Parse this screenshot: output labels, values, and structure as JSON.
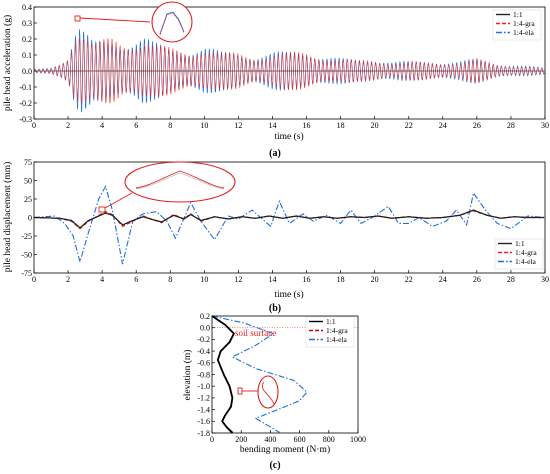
{
  "chart_data": [
    {
      "panel": "(a)",
      "type": "line",
      "xlabel": "time (s)",
      "ylabel": "pile head acceleration (g)",
      "xlim": [
        0,
        30
      ],
      "ylim": [
        -0.3,
        0.4
      ],
      "xticks": [
        0,
        2,
        4,
        6,
        8,
        10,
        12,
        14,
        16,
        18,
        20,
        22,
        24,
        26,
        28,
        30
      ],
      "yticks": [
        -0.3,
        -0.2,
        -0.1,
        0.0,
        0.1,
        0.2,
        0.3,
        0.4
      ],
      "ytick_labels": [
        "-0.3",
        "-0.2",
        "-0.1",
        "0.0",
        "0.1",
        "0.2",
        "0.3",
        "0.4"
      ],
      "legend_position": "top-right",
      "series": [
        {
          "name": "1:1",
          "color": "#222222",
          "style": "solid"
        },
        {
          "name": "1:4-gra",
          "color": "#e8251f",
          "style": "dashed"
        },
        {
          "name": "1:4-ela",
          "color": "#1f6fe0",
          "style": "dashdot"
        }
      ],
      "envelope": {
        "t": [
          0,
          1.0,
          1.5,
          2.0,
          2.4,
          2.7,
          3.0,
          3.5,
          4.0,
          4.6,
          5.2,
          5.8,
          6.4,
          7.0,
          7.6,
          8.2,
          9.0,
          10.0,
          11.0,
          12.0,
          13.0,
          14.0,
          15.0,
          16.0,
          17.0,
          18.0,
          19.0,
          20.0,
          21.0,
          22.0,
          23.0,
          24.0,
          25.0,
          26.0,
          27.0,
          28.0,
          29.0,
          30.0
        ],
        "amplitude": [
          0.01,
          0.02,
          0.05,
          0.1,
          0.27,
          0.3,
          0.25,
          0.18,
          0.2,
          0.22,
          0.2,
          0.21,
          0.23,
          0.18,
          0.16,
          0.15,
          0.14,
          0.16,
          0.12,
          0.12,
          0.1,
          0.12,
          0.12,
          0.13,
          0.1,
          0.08,
          0.07,
          0.08,
          0.06,
          0.06,
          0.06,
          0.06,
          0.06,
          0.08,
          0.05,
          0.04,
          0.03,
          0.02
        ],
        "frequency_hz": 4.2
      },
      "zoom_marker_at": [
        2.6,
        0.32
      ]
    },
    {
      "panel": "(b)",
      "type": "line",
      "xlabel": "time (s)",
      "ylabel": "pile head displacement (mm)",
      "xlim": [
        0,
        30
      ],
      "ylim": [
        -75,
        75
      ],
      "xticks": [
        0,
        2,
        4,
        6,
        8,
        10,
        12,
        14,
        16,
        18,
        20,
        22,
        24,
        26,
        28,
        30
      ],
      "yticks": [
        -75,
        -50,
        -25,
        0,
        25,
        50,
        75
      ],
      "legend_position": "bottom-right",
      "series": [
        {
          "name": "1:1",
          "color": "#222222",
          "style": "solid",
          "t": [
            0,
            1.5,
            2.2,
            2.7,
            3.2,
            4.2,
            4.6,
            5.2,
            5.8,
            6.4,
            7.0,
            7.5,
            8.2,
            8.8,
            9.2,
            9.8,
            10.6,
            11.4,
            12.2,
            13.0,
            13.8,
            14.6,
            15.4,
            16.2,
            17.0,
            17.8,
            18.6,
            19.4,
            20.2,
            21.0,
            22.0,
            23.0,
            24.0,
            25.0,
            25.8,
            26.6,
            27.4,
            28.2,
            29.0,
            30.0
          ],
          "y": [
            0,
            -1,
            -4,
            -14,
            -4,
            6,
            3,
            -10,
            -4,
            1,
            -3,
            -6,
            3,
            -2,
            4,
            -4,
            1,
            -2,
            1,
            -1,
            2,
            -1,
            2,
            -1,
            1,
            -1,
            1,
            0,
            2,
            -1,
            1,
            -1,
            0,
            3,
            10,
            3,
            -1,
            1,
            0,
            0
          ]
        },
        {
          "name": "1:4-gra",
          "color": "#e8251f",
          "style": "dashed",
          "t": [
            0,
            1.5,
            2.2,
            2.7,
            3.2,
            4.2,
            4.6,
            5.2,
            5.8,
            6.4,
            7.0,
            7.5,
            8.2,
            8.8,
            9.2,
            9.8,
            10.6,
            11.4,
            12.2,
            13.0,
            13.8,
            14.6,
            15.4,
            16.2,
            17.0,
            17.8,
            18.6,
            19.4,
            20.2,
            21.0,
            22.0,
            23.0,
            24.0,
            25.0,
            25.8,
            26.6,
            27.4,
            28.2,
            29.0,
            30.0
          ],
          "y": [
            0,
            -1,
            -5,
            -15,
            -5,
            8,
            4,
            -12,
            -5,
            2,
            -3,
            -7,
            4,
            -2,
            5,
            -5,
            1,
            -2,
            1,
            -1,
            2,
            -1,
            2,
            -1,
            1,
            -1,
            1,
            0,
            2,
            -1,
            1,
            -1,
            0,
            3,
            9,
            3,
            -1,
            1,
            0,
            0
          ]
        },
        {
          "name": "1:4-ela",
          "color": "#1f6fe0",
          "style": "dashdot",
          "t": [
            0,
            1.2,
            1.8,
            2.3,
            2.7,
            3.2,
            3.8,
            4.2,
            4.6,
            5.2,
            5.8,
            6.4,
            7.2,
            7.8,
            8.3,
            9.2,
            9.8,
            10.6,
            11.4,
            12.0,
            12.8,
            13.4,
            13.9,
            14.4,
            15.0,
            15.8,
            16.4,
            17.2,
            18.0,
            18.6,
            19.2,
            20.0,
            20.8,
            21.4,
            22.0,
            22.6,
            23.4,
            24.2,
            24.8,
            25.4,
            25.8,
            26.5,
            27.2,
            28.0,
            29.0,
            30.0
          ],
          "y": [
            0,
            2,
            -8,
            -25,
            -60,
            -20,
            25,
            42,
            10,
            -63,
            -5,
            5,
            8,
            -5,
            -28,
            20,
            -5,
            -30,
            2,
            -2,
            10,
            -2,
            -12,
            22,
            -8,
            5,
            -5,
            3,
            -8,
            10,
            -8,
            2,
            15,
            -8,
            -8,
            0,
            -12,
            -5,
            10,
            -10,
            33,
            10,
            -8,
            -15,
            2,
            0
          ]
        }
      ],
      "zoom_marker_at": [
        4.1,
        10
      ]
    },
    {
      "panel": "(c)",
      "type": "line",
      "xlabel": "bending moment (N·m)",
      "ylabel": "elevation (m)",
      "xlim": [
        0,
        1000
      ],
      "ylim": [
        -1.8,
        0.2
      ],
      "xticks": [
        0,
        200,
        400,
        600,
        800,
        1000
      ],
      "yticks": [
        0.2,
        0.0,
        -0.2,
        -0.4,
        -0.6,
        -0.8,
        -1.0,
        -1.2,
        -1.4,
        -1.6,
        -1.8
      ],
      "ytick_labels": [
        "0.2",
        "0.0",
        "-0.2",
        "-0.4",
        "-0.6",
        "-0.8",
        "-1.0",
        "-1.2",
        "-1.4",
        "-1.6",
        "-1.8"
      ],
      "legend_position": "top-right",
      "annotation": "soil surface",
      "soil_surface_elevation": 0.0,
      "series": [
        {
          "name": "1:1",
          "color": "#000000",
          "style": "solid",
          "x": [
            0,
            90,
            150,
            120,
            60,
            40,
            80,
            120,
            140,
            130,
            90,
            70,
            100,
            140
          ],
          "y": [
            0.2,
            0.05,
            -0.1,
            -0.25,
            -0.4,
            -0.55,
            -0.8,
            -1.0,
            -1.2,
            -1.35,
            -1.5,
            -1.6,
            -1.7,
            -1.8
          ]
        },
        {
          "name": "1:4-gra",
          "color": "#cc0000",
          "style": "dashed",
          "x": [
            0,
            92,
            150,
            118,
            58,
            40,
            82,
            122,
            140,
            128,
            88,
            70,
            102,
            145
          ],
          "y": [
            0.2,
            0.05,
            -0.1,
            -0.25,
            -0.4,
            -0.55,
            -0.8,
            -1.0,
            -1.2,
            -1.35,
            -1.5,
            -1.6,
            -1.7,
            -1.8
          ]
        },
        {
          "name": "1:4-ela",
          "color": "#1f6fe0",
          "style": "dashdot",
          "x": [
            0,
            220,
            420,
            300,
            140,
            300,
            560,
            650,
            600,
            450,
            300,
            470
          ],
          "y": [
            0.2,
            0.08,
            -0.1,
            -0.3,
            -0.5,
            -0.7,
            -0.9,
            -1.1,
            -1.25,
            -1.4,
            -1.55,
            -1.8
          ]
        }
      ],
      "zoom_marker_at": [
        130,
        -1.1
      ]
    }
  ]
}
